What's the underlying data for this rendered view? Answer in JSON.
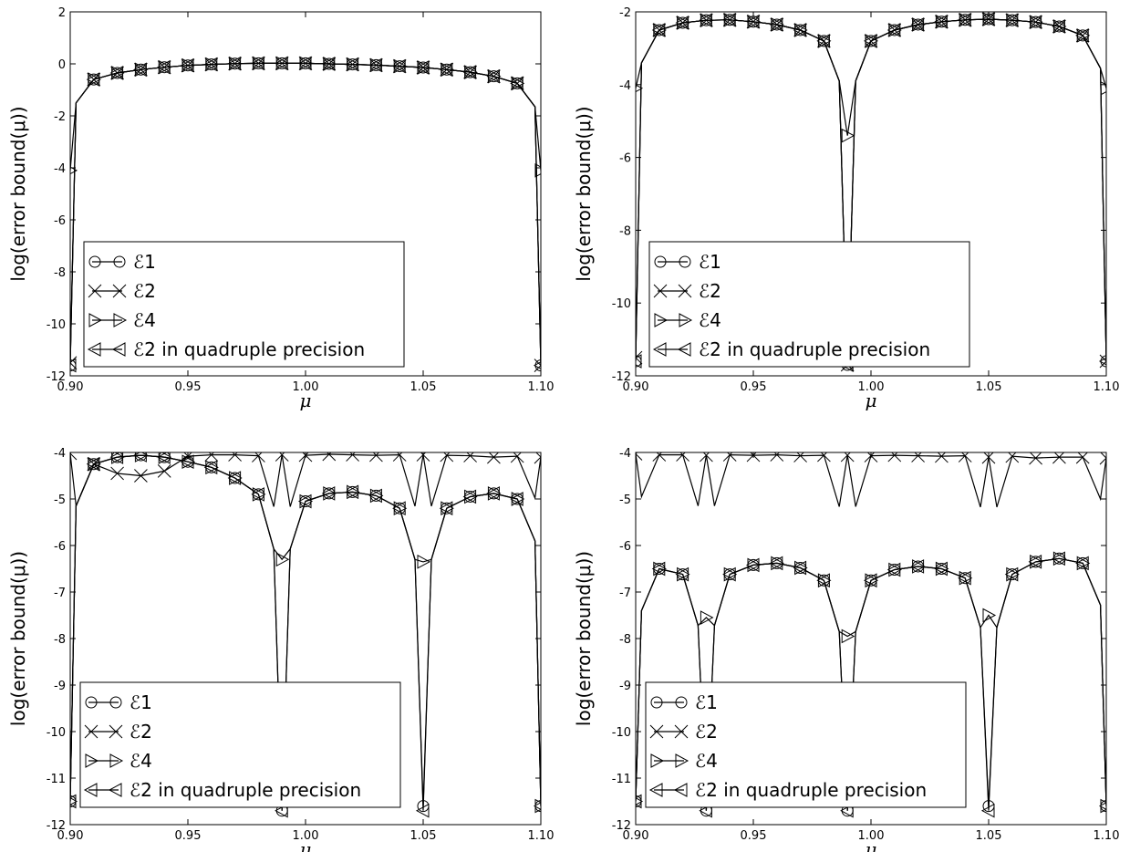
{
  "chart_data": [
    {
      "type": "line",
      "xlabel": "μ",
      "ylabel": "log(error bound(μ))",
      "xlim": [
        0.9,
        1.1
      ],
      "ylim": [
        -12,
        2
      ],
      "xticks": [
        "0.90",
        "0.95",
        "1.00",
        "1.05",
        "1.10"
      ],
      "yticks": [
        "2",
        "0",
        "-2",
        "-4",
        "-6",
        "-8",
        "-10",
        "-12"
      ],
      "legend_position": "lower-left",
      "dips": [],
      "series": [
        {
          "name": "ℰ1",
          "marker": "circle",
          "x": [
            0.9,
            0.91,
            0.92,
            0.93,
            0.94,
            0.95,
            0.96,
            0.97,
            0.98,
            0.99,
            1.0,
            1.01,
            1.02,
            1.03,
            1.04,
            1.05,
            1.06,
            1.07,
            1.08,
            1.09,
            1.1
          ],
          "y": [
            -11.6,
            -0.6,
            -0.35,
            -0.22,
            -0.13,
            -0.06,
            -0.02,
            0.01,
            0.02,
            0.02,
            0.02,
            0.0,
            -0.02,
            -0.05,
            -0.09,
            -0.14,
            -0.22,
            -0.32,
            -0.48,
            -0.75,
            -11.6
          ]
        },
        {
          "name": "ℰ2",
          "marker": "x",
          "x": [
            0.9,
            0.91,
            0.92,
            0.93,
            0.94,
            0.95,
            0.96,
            0.97,
            0.98,
            0.99,
            1.0,
            1.01,
            1.02,
            1.03,
            1.04,
            1.05,
            1.06,
            1.07,
            1.08,
            1.09,
            1.1
          ],
          "y": [
            -11.5,
            -0.6,
            -0.35,
            -0.22,
            -0.13,
            -0.06,
            -0.02,
            0.01,
            0.02,
            0.02,
            0.02,
            0.0,
            -0.02,
            -0.05,
            -0.09,
            -0.14,
            -0.22,
            -0.32,
            -0.48,
            -0.75,
            -11.6
          ]
        },
        {
          "name": "ℰ4",
          "marker": "triangle-right",
          "x": [
            0.9,
            0.91,
            0.92,
            0.93,
            0.94,
            0.95,
            0.96,
            0.97,
            0.98,
            0.99,
            1.0,
            1.01,
            1.02,
            1.03,
            1.04,
            1.05,
            1.06,
            1.07,
            1.08,
            1.09,
            1.1
          ],
          "y": [
            -4.1,
            -0.6,
            -0.35,
            -0.22,
            -0.13,
            -0.06,
            -0.02,
            0.01,
            0.02,
            0.02,
            0.02,
            0.0,
            -0.02,
            -0.05,
            -0.09,
            -0.14,
            -0.22,
            -0.32,
            -0.48,
            -0.75,
            -4.1
          ]
        },
        {
          "name": "ℰ2 in quadruple precision",
          "marker": "triangle-left",
          "x": [
            0.9,
            0.91,
            0.92,
            0.93,
            0.94,
            0.95,
            0.96,
            0.97,
            0.98,
            0.99,
            1.0,
            1.01,
            1.02,
            1.03,
            1.04,
            1.05,
            1.06,
            1.07,
            1.08,
            1.09,
            1.1
          ],
          "y": [
            -11.6,
            -0.6,
            -0.35,
            -0.22,
            -0.13,
            -0.06,
            -0.02,
            0.01,
            0.02,
            0.02,
            0.02,
            0.0,
            -0.02,
            -0.05,
            -0.09,
            -0.14,
            -0.22,
            -0.32,
            -0.48,
            -0.75,
            -11.6
          ]
        }
      ]
    },
    {
      "type": "line",
      "xlabel": "μ",
      "ylabel": "log(error bound(μ))",
      "xlim": [
        0.9,
        1.1
      ],
      "ylim": [
        -12,
        -2
      ],
      "xticks": [
        "0.90",
        "0.95",
        "1.00",
        "1.05",
        "1.10"
      ],
      "yticks": [
        "-2",
        "-4",
        "-6",
        "-8",
        "-10",
        "-12"
      ],
      "legend_position": "lower-left",
      "dips": [
        0.99
      ],
      "series": [
        {
          "name": "ℰ1",
          "marker": "circle",
          "x": [
            0.9,
            0.91,
            0.92,
            0.93,
            0.94,
            0.95,
            0.96,
            0.97,
            0.98,
            0.99,
            1.0,
            1.01,
            1.02,
            1.03,
            1.04,
            1.05,
            1.06,
            1.07,
            1.08,
            1.09,
            1.1
          ],
          "y": [
            -11.6,
            -2.5,
            -2.3,
            -2.23,
            -2.22,
            -2.27,
            -2.35,
            -2.5,
            -2.8,
            -11.7,
            -2.8,
            -2.5,
            -2.35,
            -2.27,
            -2.22,
            -2.2,
            -2.23,
            -2.28,
            -2.4,
            -2.65,
            -11.6
          ]
        },
        {
          "name": "ℰ2",
          "marker": "x",
          "x": [
            0.9,
            0.91,
            0.92,
            0.93,
            0.94,
            0.95,
            0.96,
            0.97,
            0.98,
            0.99,
            1.0,
            1.01,
            1.02,
            1.03,
            1.04,
            1.05,
            1.06,
            1.07,
            1.08,
            1.09,
            1.1
          ],
          "y": [
            -11.5,
            -2.5,
            -2.3,
            -2.23,
            -2.22,
            -2.27,
            -2.35,
            -2.5,
            -2.8,
            -11.7,
            -2.8,
            -2.5,
            -2.35,
            -2.27,
            -2.22,
            -2.2,
            -2.23,
            -2.28,
            -2.4,
            -2.65,
            -11.6
          ]
        },
        {
          "name": "ℰ4",
          "marker": "triangle-right",
          "x": [
            0.9,
            0.91,
            0.92,
            0.93,
            0.94,
            0.95,
            0.96,
            0.97,
            0.98,
            0.99,
            1.0,
            1.01,
            1.02,
            1.03,
            1.04,
            1.05,
            1.06,
            1.07,
            1.08,
            1.09,
            1.1
          ],
          "y": [
            -4.1,
            -2.5,
            -2.3,
            -2.23,
            -2.22,
            -2.27,
            -2.35,
            -2.5,
            -2.8,
            -5.4,
            -2.8,
            -2.5,
            -2.35,
            -2.27,
            -2.22,
            -2.2,
            -2.23,
            -2.28,
            -2.4,
            -2.65,
            -4.1
          ]
        },
        {
          "name": "ℰ2 in quadruple precision",
          "marker": "triangle-left",
          "x": [
            0.9,
            0.91,
            0.92,
            0.93,
            0.94,
            0.95,
            0.96,
            0.97,
            0.98,
            0.99,
            1.0,
            1.01,
            1.02,
            1.03,
            1.04,
            1.05,
            1.06,
            1.07,
            1.08,
            1.09,
            1.1
          ],
          "y": [
            -11.6,
            -2.5,
            -2.3,
            -2.23,
            -2.22,
            -2.27,
            -2.35,
            -2.5,
            -2.8,
            -11.7,
            -2.8,
            -2.5,
            -2.35,
            -2.27,
            -2.22,
            -2.2,
            -2.23,
            -2.28,
            -2.4,
            -2.65,
            -11.6
          ]
        }
      ]
    },
    {
      "type": "line",
      "xlabel": "μ",
      "ylabel": "log(error bound(μ))",
      "xlim": [
        0.9,
        1.1
      ],
      "ylim": [
        -12,
        -4
      ],
      "xticks": [
        "0.90",
        "0.95",
        "1.00",
        "1.05",
        "1.10"
      ],
      "yticks": [
        "-4",
        "-5",
        "-6",
        "-7",
        "-8",
        "-9",
        "-10",
        "-11",
        "-12"
      ],
      "legend_position": "lower-left",
      "dips": [
        0.99,
        1.05
      ],
      "series": [
        {
          "name": "ℰ1",
          "marker": "circle",
          "x": [
            0.9,
            0.91,
            0.92,
            0.93,
            0.94,
            0.95,
            0.96,
            0.97,
            0.98,
            0.99,
            1.0,
            1.01,
            1.02,
            1.03,
            1.04,
            1.05,
            1.06,
            1.07,
            1.08,
            1.09,
            1.1
          ],
          "y": [
            -11.5,
            -4.25,
            -4.1,
            -4.06,
            -4.1,
            -4.2,
            -4.32,
            -4.55,
            -4.9,
            -11.7,
            -5.05,
            -4.88,
            -4.85,
            -4.93,
            -5.2,
            -11.6,
            -5.2,
            -4.95,
            -4.88,
            -5.0,
            -11.6
          ]
        },
        {
          "name": "ℰ2",
          "marker": "x",
          "x": [
            0.9,
            0.91,
            0.92,
            0.93,
            0.94,
            0.95,
            0.96,
            0.97,
            0.98,
            0.99,
            1.0,
            1.01,
            1.02,
            1.03,
            1.04,
            1.05,
            1.06,
            1.07,
            1.08,
            1.09,
            1.1
          ],
          "y": [
            -4.02,
            -4.25,
            -4.45,
            -4.5,
            -4.4,
            -4.08,
            -4.05,
            -4.05,
            -4.07,
            -4.05,
            -4.06,
            -4.04,
            -4.05,
            -4.06,
            -4.05,
            -4.05,
            -4.06,
            -4.07,
            -4.1,
            -4.08,
            -4.1
          ]
        },
        {
          "name": "ℰ4",
          "marker": "triangle-right",
          "x": [
            0.9,
            0.91,
            0.92,
            0.93,
            0.94,
            0.95,
            0.96,
            0.97,
            0.98,
            0.99,
            1.0,
            1.01,
            1.02,
            1.03,
            1.04,
            1.05,
            1.06,
            1.07,
            1.08,
            1.09,
            1.1
          ],
          "y": [
            -11.5,
            -4.25,
            -4.1,
            -4.06,
            -4.1,
            -4.2,
            -4.32,
            -4.55,
            -4.9,
            -6.3,
            -5.05,
            -4.88,
            -4.85,
            -4.93,
            -5.2,
            -6.35,
            -5.2,
            -4.95,
            -4.88,
            -5.0,
            -11.6
          ]
        },
        {
          "name": "ℰ2 in quadruple precision",
          "marker": "triangle-left",
          "x": [
            0.9,
            0.91,
            0.92,
            0.93,
            0.94,
            0.95,
            0.96,
            0.97,
            0.98,
            0.99,
            1.0,
            1.01,
            1.02,
            1.03,
            1.04,
            1.05,
            1.06,
            1.07,
            1.08,
            1.09,
            1.1
          ],
          "y": [
            -11.5,
            -4.25,
            -4.1,
            -4.06,
            -4.1,
            -4.2,
            -4.32,
            -4.55,
            -4.9,
            -11.7,
            -5.05,
            -4.88,
            -4.85,
            -4.93,
            -5.2,
            -11.7,
            -5.2,
            -4.95,
            -4.88,
            -5.0,
            -11.6
          ]
        }
      ]
    },
    {
      "type": "line",
      "xlabel": "μ",
      "ylabel": "log(error bound(μ))",
      "xlim": [
        0.9,
        1.1
      ],
      "ylim": [
        -12,
        -4
      ],
      "xticks": [
        "0.90",
        "0.95",
        "1.00",
        "1.05",
        "1.10"
      ],
      "yticks": [
        "-4",
        "-5",
        "-6",
        "-7",
        "-8",
        "-9",
        "-10",
        "-11",
        "-12"
      ],
      "legend_position": "lower-left",
      "dips": [
        0.93,
        0.99,
        1.05
      ],
      "series": [
        {
          "name": "ℰ1",
          "marker": "circle",
          "x": [
            0.9,
            0.91,
            0.92,
            0.93,
            0.94,
            0.95,
            0.96,
            0.97,
            0.98,
            0.99,
            1.0,
            1.01,
            1.02,
            1.03,
            1.04,
            1.05,
            1.06,
            1.07,
            1.08,
            1.09,
            1.1
          ],
          "y": [
            -11.5,
            -6.5,
            -6.62,
            -11.7,
            -6.62,
            -6.42,
            -6.38,
            -6.48,
            -6.75,
            -11.7,
            -6.75,
            -6.52,
            -6.45,
            -6.5,
            -6.7,
            -11.6,
            -6.62,
            -6.35,
            -6.28,
            -6.38,
            -11.6
          ]
        },
        {
          "name": "ℰ2",
          "marker": "x",
          "x": [
            0.9,
            0.91,
            0.92,
            0.93,
            0.94,
            0.95,
            0.96,
            0.97,
            0.98,
            0.99,
            1.0,
            1.01,
            1.02,
            1.03,
            1.04,
            1.05,
            1.06,
            1.07,
            1.08,
            1.09,
            1.1
          ],
          "y": [
            -4.03,
            -4.05,
            -4.05,
            -4.06,
            -4.05,
            -4.06,
            -4.05,
            -4.07,
            -4.06,
            -4.06,
            -4.07,
            -4.06,
            -4.07,
            -4.08,
            -4.07,
            -4.1,
            -4.08,
            -4.12,
            -4.1,
            -4.1,
            -4.12
          ]
        },
        {
          "name": "ℰ4",
          "marker": "triangle-right",
          "x": [
            0.9,
            0.91,
            0.92,
            0.93,
            0.94,
            0.95,
            0.96,
            0.97,
            0.98,
            0.99,
            1.0,
            1.01,
            1.02,
            1.03,
            1.04,
            1.05,
            1.06,
            1.07,
            1.08,
            1.09,
            1.1
          ],
          "y": [
            -11.5,
            -6.5,
            -6.62,
            -7.55,
            -6.62,
            -6.42,
            -6.38,
            -6.48,
            -6.75,
            -7.95,
            -6.75,
            -6.52,
            -6.45,
            -6.5,
            -6.7,
            -7.5,
            -6.62,
            -6.35,
            -6.28,
            -6.38,
            -11.6
          ]
        },
        {
          "name": "ℰ2 in quadruple precision",
          "marker": "triangle-left",
          "x": [
            0.9,
            0.91,
            0.92,
            0.93,
            0.94,
            0.95,
            0.96,
            0.97,
            0.98,
            0.99,
            1.0,
            1.01,
            1.02,
            1.03,
            1.04,
            1.05,
            1.06,
            1.07,
            1.08,
            1.09,
            1.1
          ],
          "y": [
            -11.5,
            -6.5,
            -6.62,
            -11.7,
            -6.62,
            -6.42,
            -6.38,
            -6.48,
            -6.75,
            -11.7,
            -6.75,
            -6.52,
            -6.45,
            -6.5,
            -6.7,
            -11.7,
            -6.62,
            -6.35,
            -6.28,
            -6.38,
            -11.6
          ]
        }
      ]
    }
  ]
}
